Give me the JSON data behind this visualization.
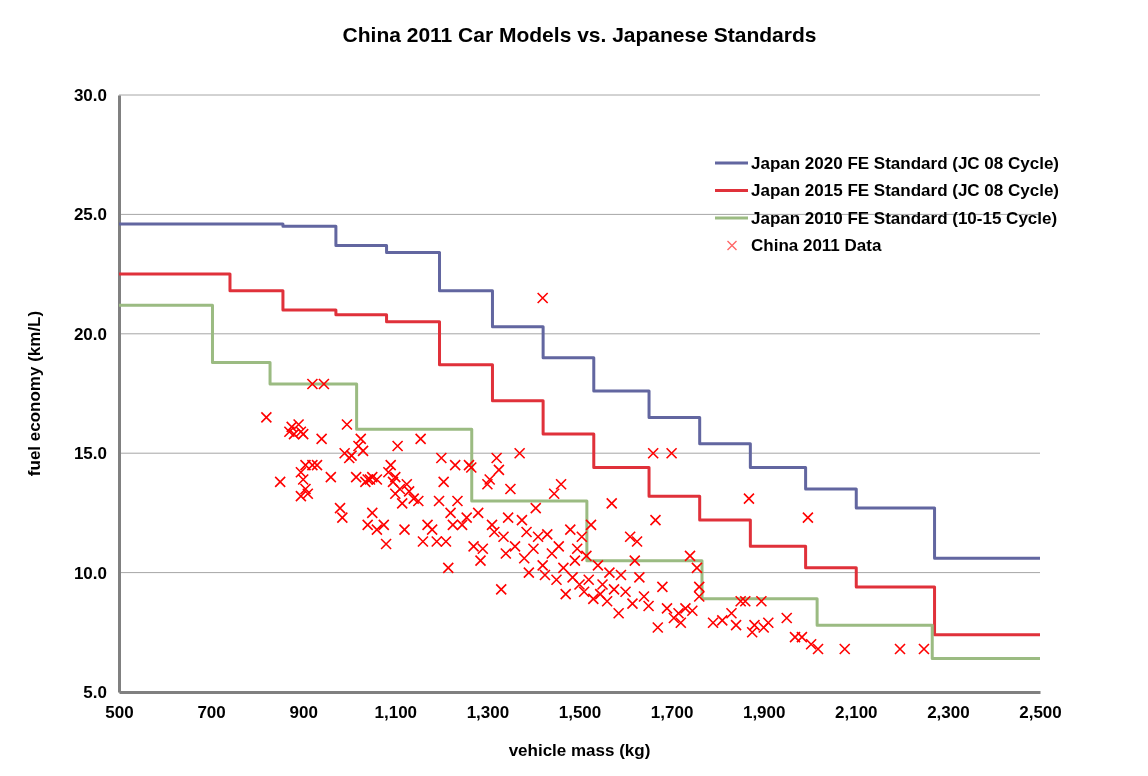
{
  "chart_data": {
    "type": "scatter",
    "title": "China 2011 Car Models vs. Japanese Standards",
    "xlabel": "vehicle mass (kg)",
    "ylabel": "fuel economy (km/L)",
    "xlim": [
      500,
      2500
    ],
    "xticks": [
      {
        "value": 500,
        "label": "500"
      },
      {
        "value": 700,
        "label": "700"
      },
      {
        "value": 900,
        "label": "900"
      },
      {
        "value": 1100,
        "label": "1,100"
      },
      {
        "value": 1300,
        "label": "1,300"
      },
      {
        "value": 1500,
        "label": "1,500"
      },
      {
        "value": 1700,
        "label": "1,700"
      },
      {
        "value": 1900,
        "label": "1,900"
      },
      {
        "value": 2100,
        "label": "2,100"
      },
      {
        "value": 2300,
        "label": "2,300"
      },
      {
        "value": 2500,
        "label": "2,500"
      }
    ],
    "ylim": [
      5,
      30
    ],
    "yticks": [
      {
        "value": 5,
        "label": "5.0"
      },
      {
        "value": 10,
        "label": "10.0"
      },
      {
        "value": 15,
        "label": "15.0"
      },
      {
        "value": 20,
        "label": "20.0"
      },
      {
        "value": 25,
        "label": "25.0"
      },
      {
        "value": 30,
        "label": "30.0"
      }
    ],
    "grid": "y",
    "legend": "top right",
    "series": [
      {
        "name": "Japan 2020 FE Standard (JC 08 Cycle)",
        "type": "step",
        "color": "#6266a0",
        "marker": "none",
        "x": [
          500,
          856,
          971,
          1081,
          1196,
          1311,
          1421,
          1531,
          1651,
          1761,
          1871,
          1991,
          2101,
          2271,
          2500
        ],
        "values": [
          24.6,
          24.5,
          23.7,
          23.4,
          21.8,
          20.3,
          19.0,
          17.6,
          16.5,
          15.4,
          14.4,
          13.5,
          12.7,
          10.6,
          10.6
        ]
      },
      {
        "name": "Japan 2015 FE Standard (JC 08 Cycle)",
        "type": "step",
        "color": "#e0313a",
        "marker": "none",
        "x": [
          500,
          741,
          856,
          971,
          1081,
          1196,
          1311,
          1421,
          1531,
          1651,
          1761,
          1871,
          1991,
          2101,
          2271,
          2500
        ],
        "values": [
          22.5,
          21.8,
          21.0,
          20.8,
          20.5,
          18.7,
          17.2,
          15.8,
          14.4,
          13.2,
          12.2,
          11.1,
          10.2,
          9.4,
          7.4,
          7.4
        ]
      },
      {
        "name": "Japan 2010 FE Standard (10-15 Cycle)",
        "type": "step",
        "color": "#9bbb82",
        "marker": "none",
        "x": [
          500,
          703,
          828,
          1016,
          1266,
          1516,
          1766,
          2016,
          2266,
          2500
        ],
        "values": [
          21.2,
          18.8,
          17.9,
          16.0,
          13.0,
          10.5,
          8.9,
          7.8,
          6.4,
          6.4
        ]
      },
      {
        "name": "China 2011 Data",
        "color": "#ff0000",
        "marker": "cross",
        "x": [
          820,
          850,
          870,
          875,
          880,
          890,
          895,
          900,
          905,
          895,
          900,
          905,
          895,
          910,
          920,
          930,
          920,
          945,
          940,
          960,
          980,
          985,
          990,
          995,
          1000,
          1005,
          1015,
          1020,
          1025,
          1030,
          1035,
          1040,
          1045,
          1050,
          1060,
          1040,
          1050,
          1060,
          1075,
          1080,
          1085,
          1090,
          1095,
          1100,
          1100,
          1105,
          1110,
          1115,
          1120,
          1125,
          1130,
          1140,
          1150,
          1155,
          1160,
          1170,
          1180,
          1190,
          1195,
          1200,
          1205,
          1210,
          1215,
          1220,
          1225,
          1230,
          1235,
          1245,
          1255,
          1260,
          1265,
          1270,
          1280,
          1285,
          1290,
          1300,
          1305,
          1310,
          1315,
          1320,
          1325,
          1330,
          1335,
          1340,
          1345,
          1350,
          1360,
          1370,
          1375,
          1380,
          1385,
          1390,
          1400,
          1405,
          1410,
          1420,
          1420,
          1425,
          1430,
          1440,
          1445,
          1450,
          1455,
          1460,
          1465,
          1470,
          1480,
          1485,
          1490,
          1495,
          1500,
          1505,
          1510,
          1515,
          1520,
          1525,
          1530,
          1540,
          1545,
          1550,
          1560,
          1565,
          1570,
          1575,
          1585,
          1590,
          1600,
          1610,
          1615,
          1620,
          1625,
          1630,
          1640,
          1650,
          1660,
          1665,
          1670,
          1680,
          1690,
          1700,
          1705,
          1715,
          1720,
          1730,
          1740,
          1745,
          1755,
          1760,
          1760,
          1790,
          1810,
          1830,
          1840,
          1850,
          1860,
          1868,
          1875,
          1880,
          1895,
          1900,
          1910,
          1950,
          1968,
          1983,
          1996,
          2003,
          2018,
          2076,
          2196,
          2248
        ],
        "values": [
          16.5,
          13.8,
          15.9,
          16.1,
          15.8,
          16.2,
          15.9,
          15.8,
          14.5,
          14.2,
          13.9,
          13.5,
          13.2,
          13.3,
          14.5,
          14.5,
          17.9,
          17.9,
          15.6,
          14.0,
          12.7,
          12.3,
          15.0,
          16.2,
          14.8,
          14.9,
          14.0,
          15.3,
          15.6,
          15.1,
          13.8,
          13.9,
          13.9,
          14.0,
          13.9,
          12.0,
          12.5,
          11.8,
          12.0,
          11.2,
          14.2,
          14.5,
          13.8,
          14.0,
          13.3,
          15.3,
          13.5,
          12.9,
          11.8,
          13.7,
          13.4,
          13.1,
          13.0,
          15.6,
          11.3,
          12.0,
          11.8,
          11.3,
          13.0,
          14.8,
          13.8,
          11.3,
          10.2,
          12.5,
          12.0,
          14.5,
          13.0,
          12.0,
          12.3,
          14.5,
          14.4,
          11.1,
          12.5,
          10.5,
          11.0,
          13.7,
          13.9,
          12.0,
          11.7,
          14.8,
          14.3,
          9.3,
          11.5,
          10.8,
          12.3,
          13.5,
          11.1,
          15.0,
          12.2,
          10.6,
          11.7,
          10.0,
          11.0,
          12.7,
          11.5,
          21.5,
          10.3,
          9.9,
          11.6,
          10.8,
          13.3,
          9.7,
          11.1,
          13.7,
          10.2,
          9.1,
          11.8,
          9.8,
          10.5,
          11.0,
          9.5,
          11.5,
          9.2,
          10.7,
          9.7,
          12.0,
          8.9,
          10.3,
          9.1,
          9.5,
          8.8,
          10.0,
          12.9,
          9.3,
          8.3,
          9.9,
          9.2,
          11.5,
          8.7,
          10.5,
          11.3,
          9.8,
          9.0,
          8.6,
          15.0,
          12.2,
          7.7,
          9.4,
          8.5,
          15.0,
          8.1,
          8.3,
          7.9,
          8.5,
          10.7,
          8.4,
          10.2,
          9.0,
          9.4,
          7.9,
          8.0,
          8.3,
          7.8,
          8.8,
          8.8,
          13.1,
          7.5,
          7.8,
          8.8,
          7.7,
          7.9,
          8.1,
          7.3,
          7.3,
          12.3,
          7.0,
          6.8,
          6.8,
          6.8,
          6.8
        ]
      }
    ]
  }
}
